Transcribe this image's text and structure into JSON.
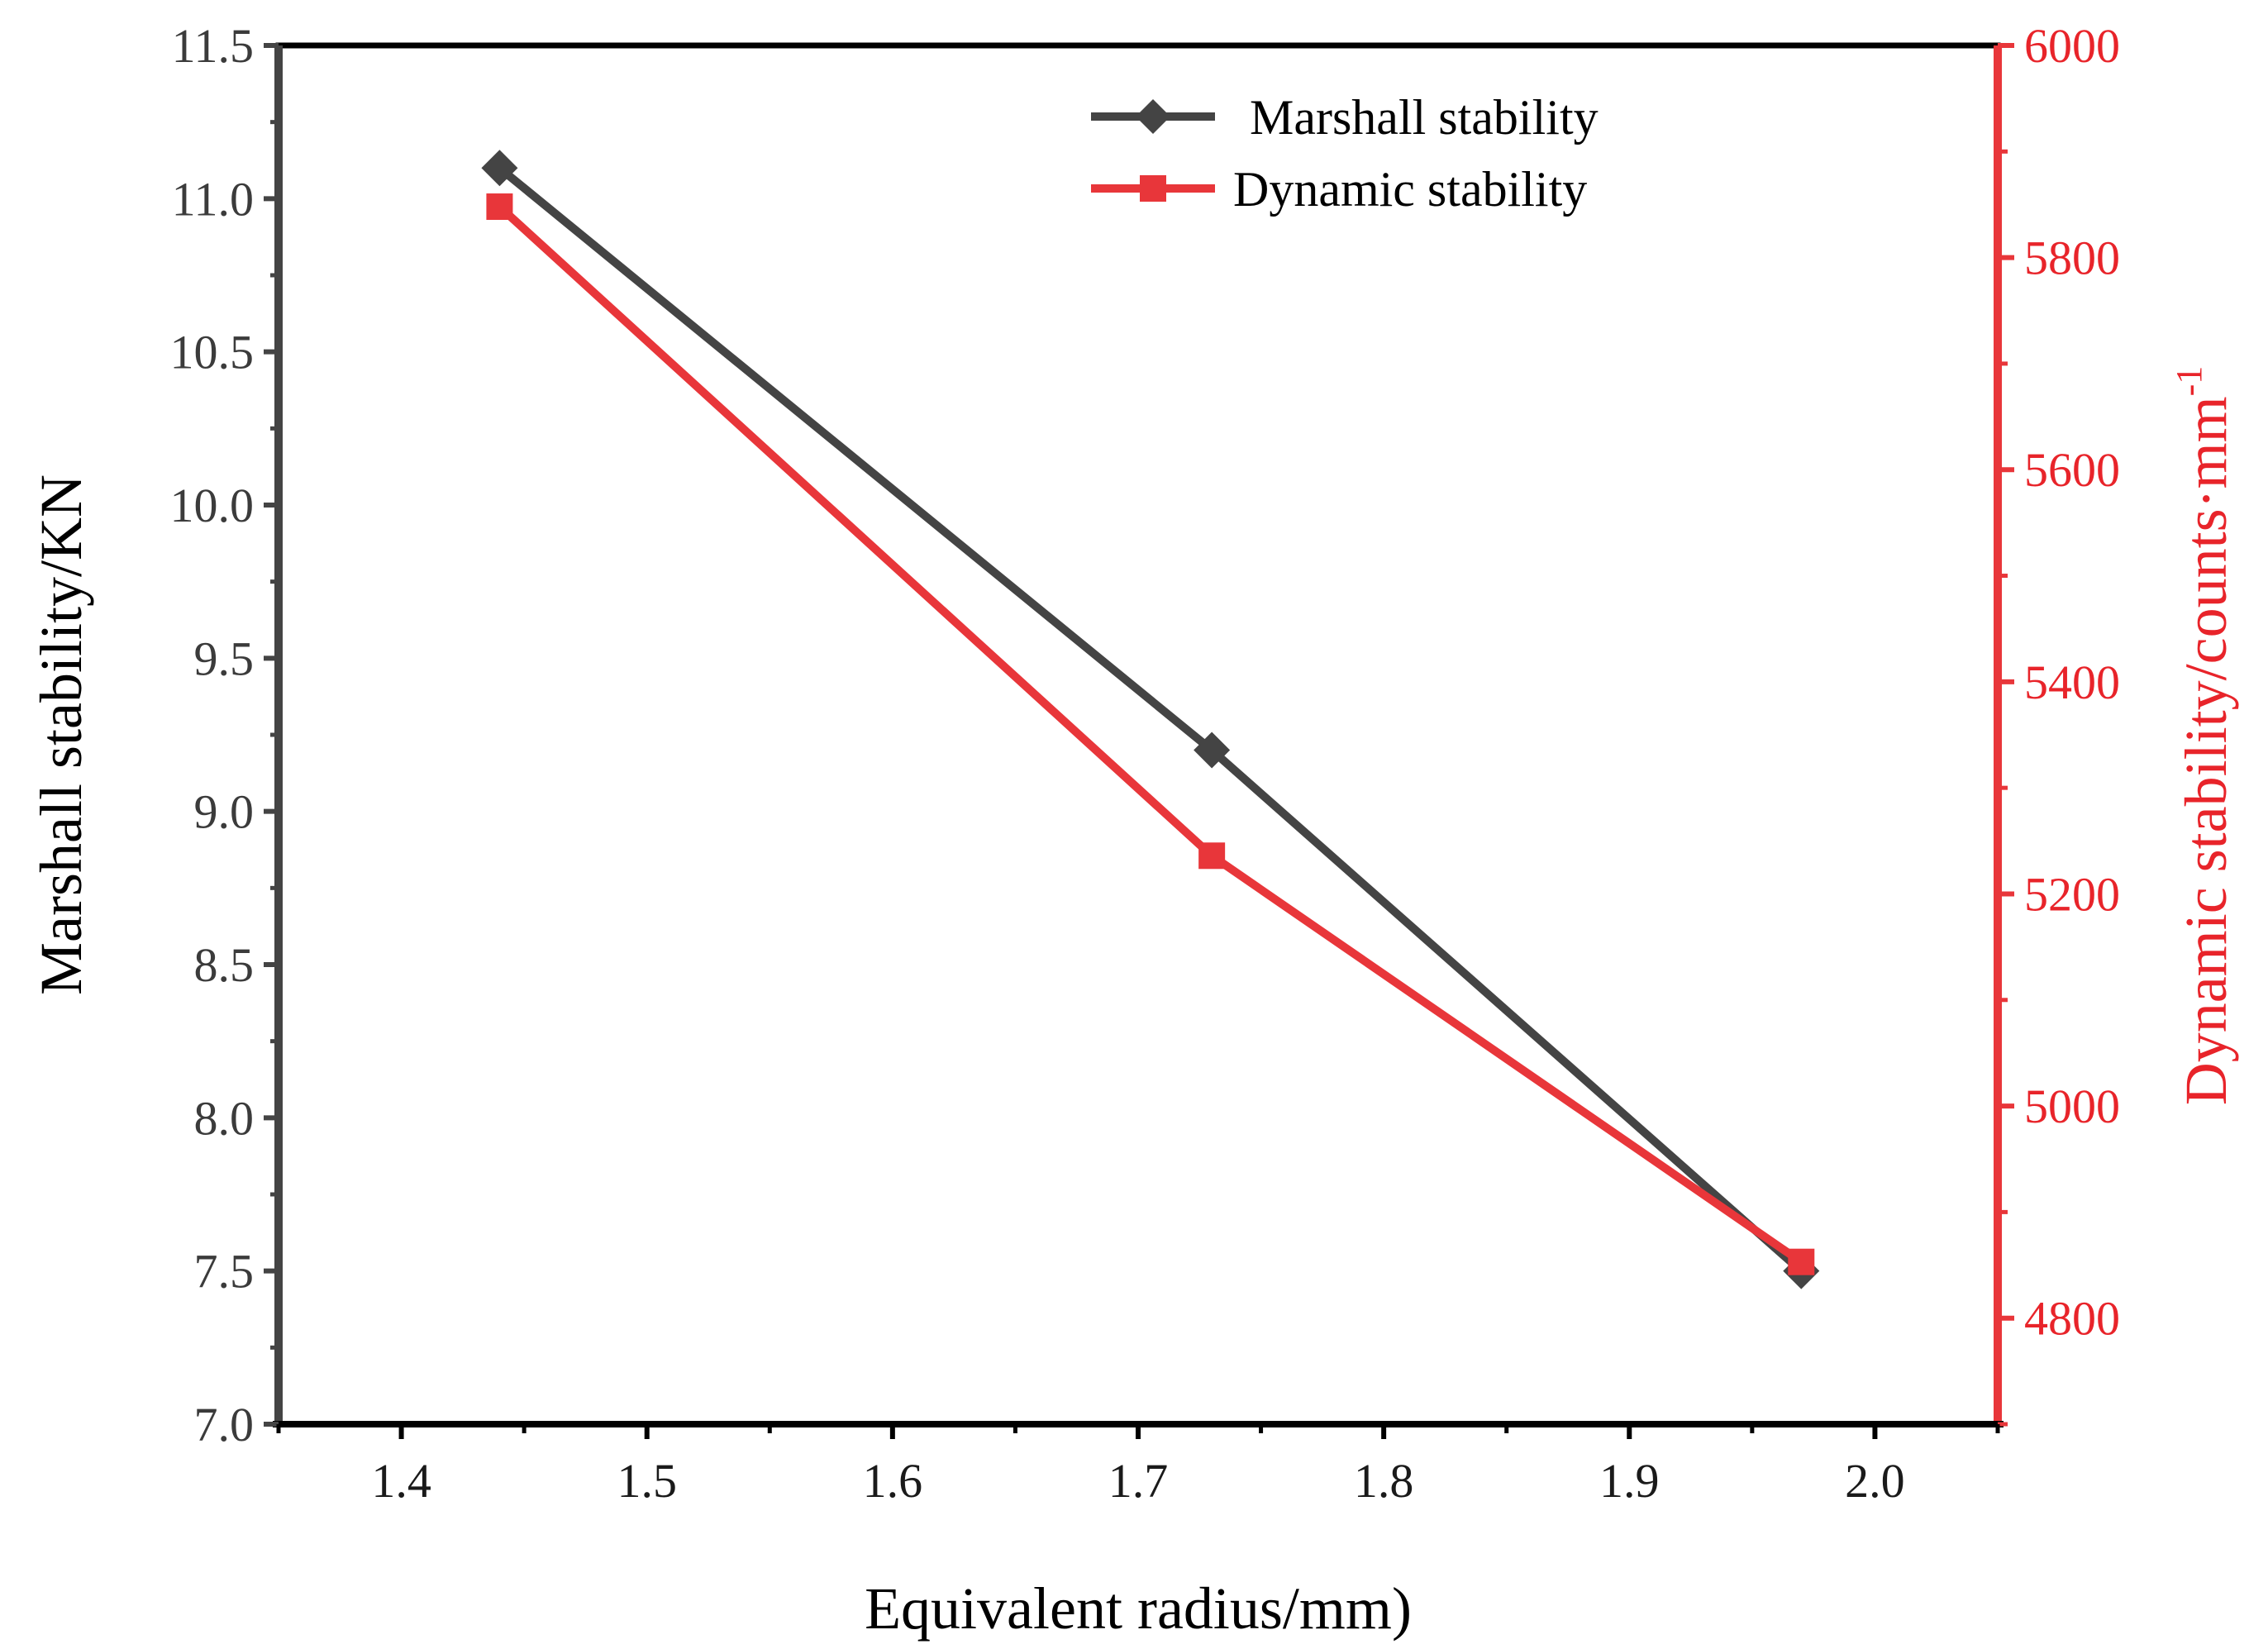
{
  "chart_data": {
    "type": "line",
    "title": "",
    "xlabel": "Equivalent radius/mm)",
    "ylabel": "Marshall stability/KN",
    "y2label_main": "Dynamic stability/counts·mm",
    "y2label_sup": "-1",
    "xlim": [
      1.35,
      2.05
    ],
    "ylim": [
      7.0,
      11.5
    ],
    "y2lim": [
      4700,
      6000
    ],
    "x_ticks": [
      "1.4",
      "1.5",
      "1.6",
      "1.7",
      "1.8",
      "1.9",
      "2.0"
    ],
    "y_ticks": [
      "7.0",
      "7.5",
      "8.0",
      "8.5",
      "9.0",
      "9.5",
      "10.0",
      "10.5",
      "11.0",
      "11.5"
    ],
    "y2_ticks": [
      "4800",
      "5000",
      "5200",
      "5400",
      "5600",
      "5800",
      "6000"
    ],
    "legend_position": "top-center",
    "series": [
      {
        "name": "Marshall stability",
        "axis": "left",
        "color": "#444444",
        "marker": "diamond",
        "x": [
          1.44,
          1.73,
          1.97
        ],
        "y": [
          11.1,
          9.2,
          7.5
        ]
      },
      {
        "name": "Dynamic stability",
        "axis": "right",
        "color": "#e8363a",
        "marker": "square",
        "x": [
          1.44,
          1.73,
          1.97
        ],
        "y": [
          5848,
          5236,
          4853
        ]
      }
    ]
  }
}
